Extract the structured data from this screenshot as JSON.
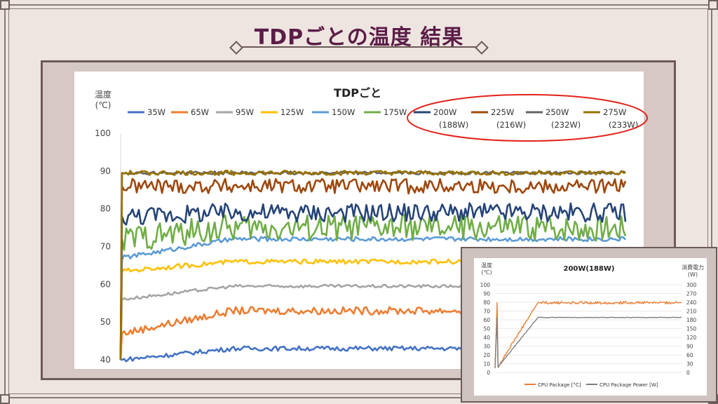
{
  "slide": {
    "title": "TDPごとの温度 結果"
  },
  "chart_data": [
    {
      "type": "line",
      "title": "TDPごと",
      "ylabel": "温度\n(℃)",
      "ylim": [
        40,
        100
      ],
      "yticks": [
        40,
        50,
        60,
        70,
        80,
        90,
        100
      ],
      "legend_position": "top",
      "highlighted_legend_entries": [
        "200W\n(188W)",
        "225W\n(216W)",
        "250W\n(232W)",
        "275W\n(233W)"
      ],
      "series": [
        {
          "name": "35W",
          "color": "#4472c4",
          "start": 40,
          "plateau": 43,
          "noise": 0.6
        },
        {
          "name": "65W",
          "color": "#ed7d31",
          "start": 47,
          "plateau": 53,
          "noise": 1.0
        },
        {
          "name": "95W",
          "color": "#a5a5a5",
          "start": 56,
          "plateau": 59.5,
          "noise": 0.4
        },
        {
          "name": "125W",
          "color": "#ffc000",
          "start": 63.5,
          "plateau": 66,
          "noise": 0.6
        },
        {
          "name": "150W",
          "color": "#5b9bd5",
          "start": 67,
          "plateau": 72,
          "noise": 0.6
        },
        {
          "name": "175W",
          "color": "#70ad47",
          "start": 72,
          "plateau": 75,
          "noise": 3.5
        },
        {
          "name": "200W\n(188W)",
          "color": "#264478",
          "start": 78,
          "plateau": 79,
          "noise": 2.5
        },
        {
          "name": "225W\n(216W)",
          "color": "#9e480e",
          "start": 86,
          "plateau": 86,
          "noise": 2.0
        },
        {
          "name": "250W\n(232W)",
          "color": "#636363",
          "start": 89.5,
          "plateau": 89.5,
          "noise": 0.4
        },
        {
          "name": "275W\n(233W)",
          "color": "#997300",
          "start": 89.5,
          "plateau": 89.5,
          "noise": 0.6
        }
      ]
    },
    {
      "type": "line",
      "title": "200W(188W)",
      "ylabel": "温度\n(℃)",
      "y2label": "消費電力\n(W)",
      "ylim": [
        0,
        100
      ],
      "y2lim": [
        0,
        300
      ],
      "yticks": [
        0,
        10,
        20,
        30,
        40,
        50,
        60,
        70,
        80,
        90,
        100
      ],
      "y2ticks": [
        0,
        30,
        60,
        90,
        120,
        150,
        180,
        210,
        240,
        270,
        300
      ],
      "legend_position": "bottom",
      "series": [
        {
          "name": "CPU Package [°C]",
          "color": "#ed7d31",
          "axis": "left",
          "start": 5,
          "plateau": 79.5,
          "noise": 1.5
        },
        {
          "name": "CPU Package Power [W]",
          "color": "#7f7f7f",
          "axis": "right",
          "start": 15,
          "plateau": 188,
          "noise": 1.0
        }
      ]
    }
  ]
}
